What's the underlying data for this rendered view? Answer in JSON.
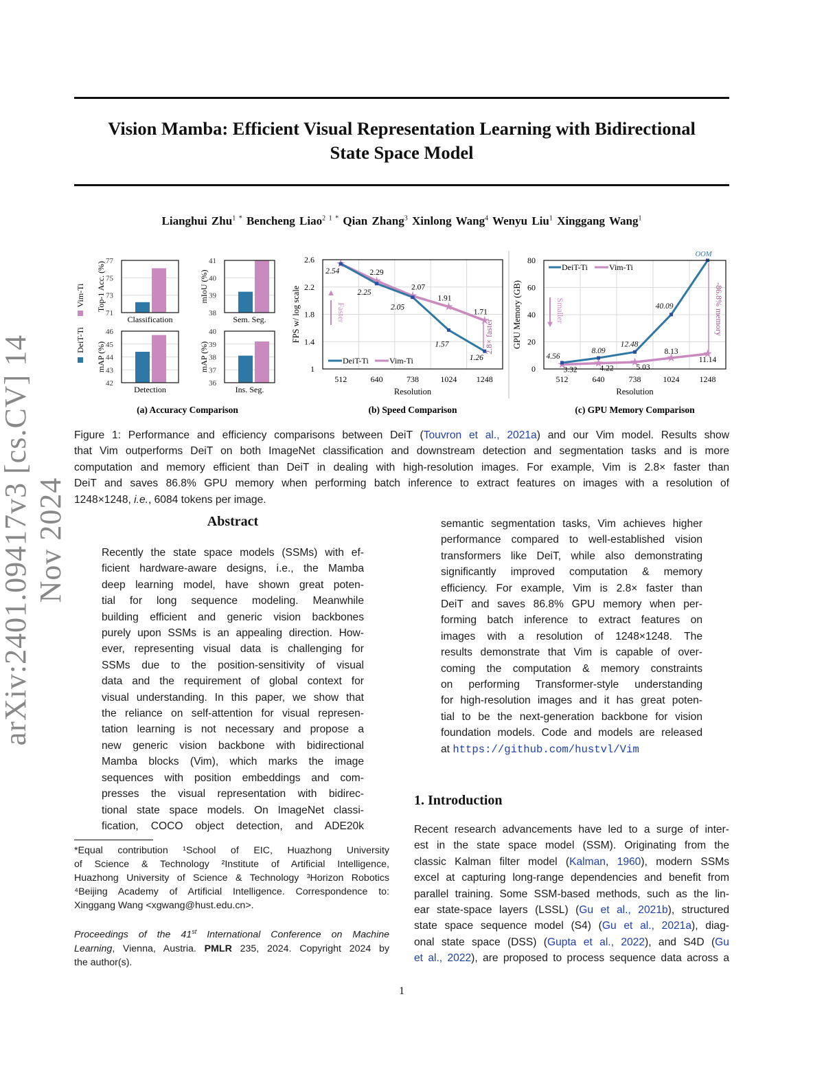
{
  "watermark": "arXiv:2401.09417v3  [cs.CV]  14 Nov 2024",
  "title_lines": [
    "Vision Mamba: Efficient Visual Representation Learning with Bidirectional",
    "State Space Model"
  ],
  "authors": [
    {
      "name": "Lianghui Zhu",
      "sup": "1 *"
    },
    {
      "name": "Bencheng Liao",
      "sup": "2 1 *"
    },
    {
      "name": "Qian Zhang",
      "sup": "3"
    },
    {
      "name": "Xinlong Wang",
      "sup": "4"
    },
    {
      "name": "Wenyu Liu",
      "sup": "1"
    },
    {
      "name": "Xinggang Wang",
      "sup": "1"
    }
  ],
  "colors": {
    "deit": "#2e78a6",
    "vim": "#c98bbf",
    "link": "#1f3fa8",
    "oom": "#2e78a6"
  },
  "chart_data": [
    {
      "type": "bar",
      "panel": "a",
      "subcaption": "(a) Accuracy Comparison",
      "legend": [
        "Vim-Ti",
        "DeiT-Ti"
      ],
      "legend_placement": "left",
      "subplots": [
        {
          "xlabel": "Classification",
          "ylabel": "Top-1 Acc. (%)",
          "ylim": [
            71,
            77
          ],
          "ticks": [
            71,
            73,
            75,
            77
          ],
          "values": {
            "DeiT-Ti": 72.2,
            "Vim-Ti": 76.1
          }
        },
        {
          "xlabel": "Sem. Seg.",
          "ylabel": "mIoU (%)",
          "ylim": [
            38,
            41
          ],
          "ticks": [
            38,
            39,
            40,
            41
          ],
          "values": {
            "DeiT-Ti": 39.2,
            "Vim-Ti": 41.0
          }
        },
        {
          "xlabel": "Detection",
          "ylabel": "mAP (%)",
          "ylim": [
            42,
            46
          ],
          "ticks": [
            42,
            43,
            44,
            45,
            46
          ],
          "values": {
            "DeiT-Ti": 44.4,
            "Vim-Ti": 45.7
          }
        },
        {
          "xlabel": "Ins. Seg.",
          "ylabel": "mAP (%)",
          "ylim": [
            36,
            40
          ],
          "ticks": [
            36,
            37,
            38,
            39,
            40
          ],
          "values": {
            "DeiT-Ti": 38.1,
            "Vim-Ti": 39.2
          }
        }
      ]
    },
    {
      "type": "line",
      "panel": "b",
      "subcaption": "(b) Speed Comparison",
      "xlabel": "Resolution",
      "ylabel": "FPS w/ log scale",
      "ylim": [
        1,
        2.6
      ],
      "ticks": [
        1,
        1.4,
        1.8,
        2.2,
        2.6
      ],
      "categories": [
        "512",
        "640",
        "738",
        "1024",
        "1248"
      ],
      "grid": true,
      "legend_placement": "bottom-left",
      "series": [
        {
          "name": "DeiT-Ti",
          "values": [
            2.54,
            2.25,
            2.05,
            1.57,
            1.26
          ],
          "labels": [
            "2.54",
            "2.25",
            "2.05",
            "1.57",
            "1.26"
          ]
        },
        {
          "name": "Vim-Ti",
          "values": [
            2.54,
            2.29,
            2.07,
            1.91,
            1.71
          ],
          "labels": [
            "",
            "2.29",
            "2.07",
            "1.91",
            "1.71"
          ]
        }
      ],
      "annotations": [
        "Faster",
        "2.8× faster"
      ]
    },
    {
      "type": "line",
      "panel": "c",
      "subcaption": "(c) GPU Memory Comparison",
      "xlabel": "Resolution",
      "ylabel": "GPU Memory (GB)",
      "ylim": [
        0,
        80
      ],
      "ticks": [
        0,
        20,
        40,
        60,
        80
      ],
      "categories": [
        "512",
        "640",
        "738",
        "1024",
        "1248"
      ],
      "grid": true,
      "legend_placement": "top-left",
      "series": [
        {
          "name": "DeiT-Ti",
          "values": [
            4.56,
            8.09,
            12.48,
            40.09,
            80
          ],
          "labels": [
            "4.56",
            "8.09",
            "12.48",
            "40.09",
            "OOM"
          ]
        },
        {
          "name": "Vim-Ti",
          "values": [
            3.32,
            4.22,
            5.03,
            8.13,
            11.14
          ],
          "labels": [
            "3.32",
            "4.22",
            "5.03",
            "8.13",
            "11.14"
          ]
        }
      ],
      "annotations": [
        "Smaller",
        "-86.8% memory"
      ]
    }
  ],
  "caption_lines": [
    [
      {
        "t": "Figure 1: Performance and efficiency comparisons between DeiT ("
      },
      {
        "t": "Touvron et al.,",
        "link": true
      },
      {
        "t": " "
      },
      {
        "t": "2021a",
        "link": true
      },
      {
        "t": ") and our Vim model. Results show"
      }
    ],
    [
      {
        "t": "that Vim outperforms DeiT on both ImageNet classification and downstream detection and segmentation tasks and is more"
      }
    ],
    [
      {
        "t": "computation and memory efficient than DeiT in dealing with high-resolution images. For example, Vim is 2.8× faster than"
      }
    ],
    [
      {
        "t": "DeiT and saves 86.8% GPU memory when performing batch inference to extract features on images with a resolution of"
      }
    ],
    [
      {
        "t": "1248×1248, "
      },
      {
        "t": "i.e.",
        "i": true
      },
      {
        "t": ", 6084 tokens per image."
      }
    ]
  ],
  "abstract_heading": "Abstract",
  "abstract_lines": [
    "Recently the state space models (SSMs) with ef-",
    "ficient hardware-aware designs, i.e., the Mamba",
    "deep learning model, have shown great poten-",
    "tial for long sequence modeling.  Meanwhile",
    "building efficient and generic vision backbones",
    "purely upon SSMs is an appealing direction. How-",
    "ever, representing visual data is challenging for",
    "SSMs due to the position-sensitivity of visual",
    "data and the requirement of global context for",
    "visual understanding. In this paper, we show that",
    "the reliance on self-attention for visual represen-",
    "tation learning is not necessary and propose a",
    "new generic vision backbone with bidirectional",
    "Mamba blocks (Vim), which marks the image",
    "sequences with position embeddings and com-",
    "presses the visual representation with bidirec-",
    "tional state space models.  On ImageNet classi-",
    "fication, COCO object detection, and ADE20k"
  ],
  "abstract_right_lines": [
    "semantic segmentation tasks, Vim achieves higher",
    "performance compared to well-established vision",
    "transformers like DeiT, while also demonstrating",
    "significantly improved computation & memory",
    "efficiency. For example, Vim is 2.8× faster than",
    "DeiT and saves 86.8% GPU memory when per-",
    "forming batch inference to extract features on",
    "images with a resolution of 1248×1248.  The",
    "results demonstrate that Vim is capable of over-",
    "coming the computation & memory constraints",
    "on performing Transformer-style understanding",
    "for high-resolution images and it has great poten-",
    "tial to be the next-generation backbone for vision",
    "foundation models. Code and models are released"
  ],
  "abstract_code_prefix": "at ",
  "abstract_code_url": "https://github.com/hustvl/Vim",
  "intro_heading": "1. Introduction",
  "intro_lines": [
    [
      {
        "t": "Recent research advancements have led to a surge of inter-"
      }
    ],
    [
      {
        "t": "est in the state space model (SSM). Originating from the"
      }
    ],
    [
      {
        "t": "classic Kalman filter model ("
      },
      {
        "t": "Kalman",
        "link": true
      },
      {
        "t": ", "
      },
      {
        "t": "1960",
        "link": true
      },
      {
        "t": "), modern SSMs"
      }
    ],
    [
      {
        "t": "excel at capturing long-range dependencies and benefit from"
      }
    ],
    [
      {
        "t": "parallel training. Some SSM-based methods, such as the lin-"
      }
    ],
    [
      {
        "t": "ear state-space layers (LSSL) ("
      },
      {
        "t": "Gu et al.,",
        "link": true
      },
      {
        "t": " "
      },
      {
        "t": "2021b",
        "link": true
      },
      {
        "t": "), structured"
      }
    ],
    [
      {
        "t": "state space sequence model (S4) ("
      },
      {
        "t": "Gu et al.,",
        "link": true
      },
      {
        "t": " "
      },
      {
        "t": "2021a",
        "link": true
      },
      {
        "t": "), diag-"
      }
    ],
    [
      {
        "t": "onal state space (DSS) ("
      },
      {
        "t": "Gupta et al.,",
        "link": true
      },
      {
        "t": " "
      },
      {
        "t": "2022",
        "link": true
      },
      {
        "t": "), and S4D ("
      },
      {
        "t": "Gu",
        "link": true
      }
    ],
    [
      {
        "t": "et al.,",
        "link": true
      },
      {
        "t": " "
      },
      {
        "t": "2022",
        "link": true
      },
      {
        "t": "), are proposed to process sequence data across a"
      }
    ]
  ],
  "footnote_lines": [
    "*Equal contribution  ¹School of EIC, Huazhong University",
    "of Science & Technology  ²Institute of Artificial Intelligence,",
    "Huazhong University of Science & Technology ³Horizon Robotics",
    "⁴Beijing Academy of Artificial Intelligence. Correspondence to:",
    "Xinggang Wang <xgwang@hust.edu.cn>."
  ],
  "proceedings_lines": [
    [
      {
        "t": "Proceedings of the 41",
        "i": true
      },
      {
        "t": "st",
        "i": true,
        "sup": true
      },
      {
        "t": " International Conference on Machine",
        "i": true
      }
    ],
    [
      {
        "t": "Learning",
        "i": true
      },
      {
        "t": ", Vienna, Austria. "
      },
      {
        "t": "PMLR",
        "b": true
      },
      {
        "t": " 235, 2024. Copyright 2024 by"
      }
    ],
    [
      {
        "t": "the author(s)."
      }
    ]
  ],
  "page_number": "1"
}
